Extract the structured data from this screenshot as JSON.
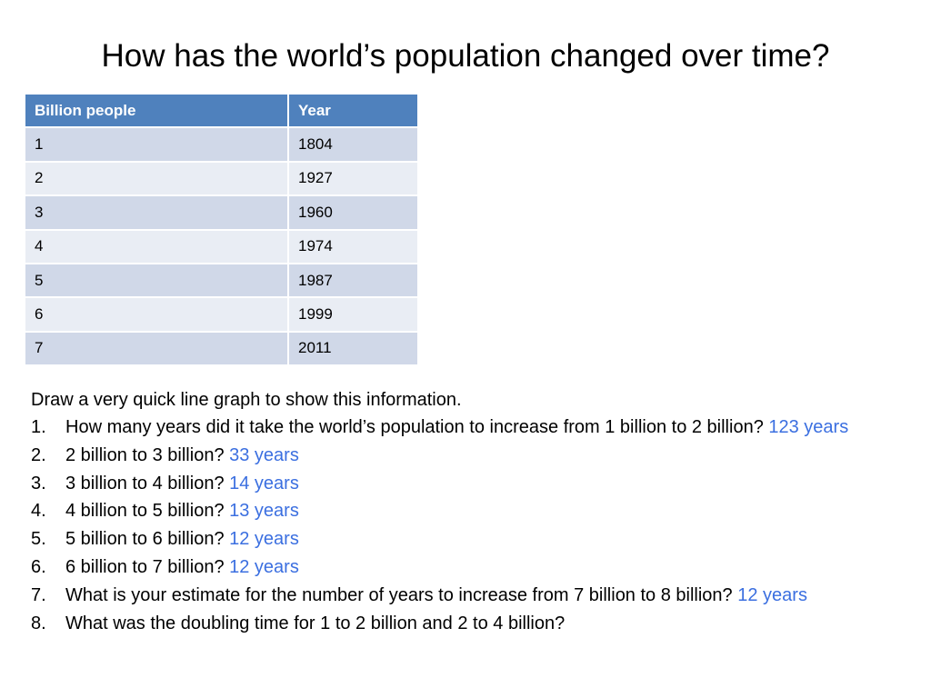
{
  "title": "How has the world’s population changed over time?",
  "table": {
    "headers": [
      "Billion people",
      "Year"
    ],
    "rows": [
      [
        "1",
        "1804"
      ],
      [
        "2",
        "1927"
      ],
      [
        "3",
        "1960"
      ],
      [
        "4",
        "1974"
      ],
      [
        "5",
        "1987"
      ],
      [
        "6",
        "1999"
      ],
      [
        "7",
        "2011"
      ]
    ]
  },
  "intro": "Draw a very quick line graph to show this information.",
  "questions": [
    {
      "num": "1.",
      "text": "How many years did it take the world’s population to increase from 1 billion to 2 billion?",
      "answer": "123 years"
    },
    {
      "num": "2.",
      "text": "2 billion to 3 billion?",
      "answer": "33 years"
    },
    {
      "num": "3.",
      "text": "3 billion to 4 billion?",
      "answer": "14 years"
    },
    {
      "num": "4.",
      "text": "4 billion to 5 billion?",
      "answer": "13 years"
    },
    {
      "num": "5.",
      "text": "5 billion to 6 billion?",
      "answer": "12 years"
    },
    {
      "num": "6.",
      "text": "6 billion to 7 billion?",
      "answer": "12 years"
    },
    {
      "num": "7.",
      "text": "What is your estimate for the number of years to increase from 7 billion to 8 billion?",
      "answer": "12 years"
    },
    {
      "num": "8.",
      "text": "What was the doubling time for 1 to 2 billion and 2 to 4 billion?",
      "answer": ""
    }
  ],
  "colors": {
    "header_bg": "#4f81bd",
    "row_odd_bg": "#d0d8e8",
    "row_even_bg": "#e9edf4",
    "answer_text": "#3b6fe0"
  }
}
